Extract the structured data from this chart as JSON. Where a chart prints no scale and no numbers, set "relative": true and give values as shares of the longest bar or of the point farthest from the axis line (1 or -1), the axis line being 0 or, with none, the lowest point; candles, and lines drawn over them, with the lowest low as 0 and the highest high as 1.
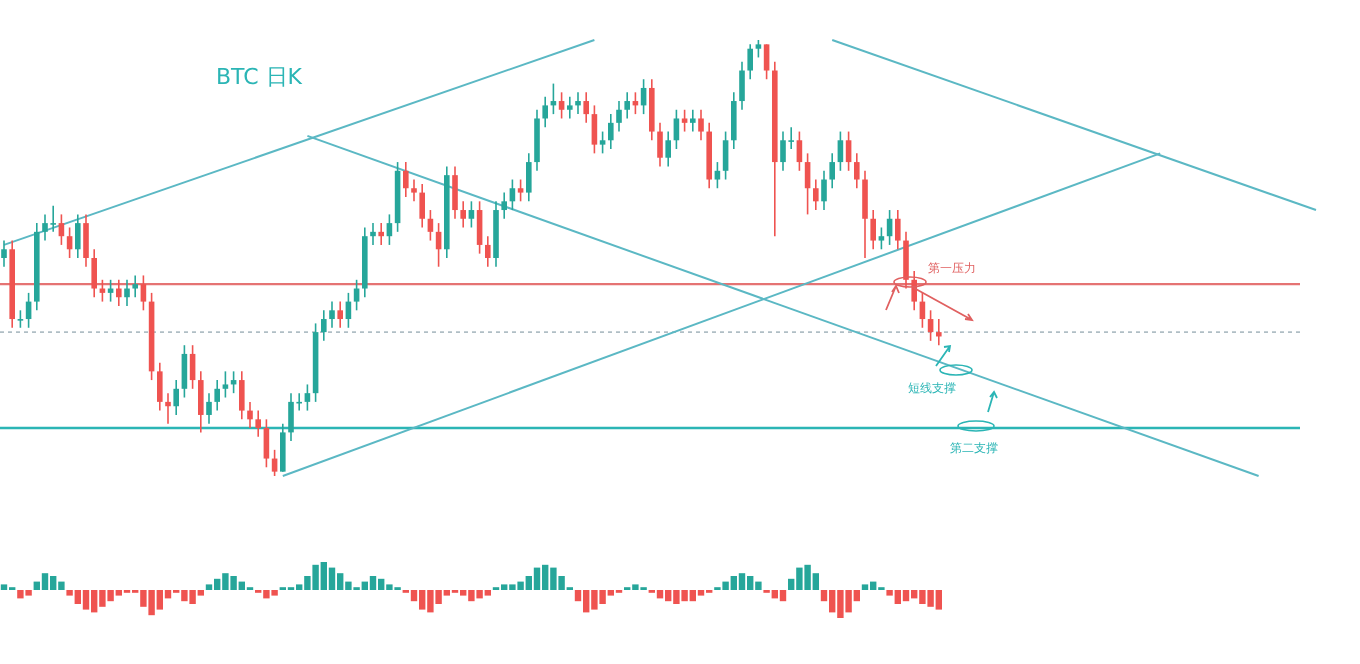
{
  "chart_data": [
    {
      "type": "candlestick",
      "title": "BTC 日K",
      "relative": true,
      "categories": [
        null,
        null,
        null,
        null,
        null,
        null,
        null,
        null,
        null,
        null,
        null,
        null,
        null,
        null,
        null,
        null,
        null,
        null,
        null,
        null,
        null,
        null,
        null,
        null,
        null,
        null,
        null,
        null,
        null,
        null,
        null,
        null,
        null,
        null,
        null,
        null,
        null,
        null,
        null,
        null,
        null,
        null,
        null,
        null,
        null,
        null,
        null,
        null,
        null,
        null,
        null,
        null,
        null,
        null,
        null,
        null,
        null,
        null,
        null,
        null,
        null,
        null,
        null,
        null,
        null,
        null,
        null,
        null,
        null,
        null,
        null,
        null,
        null,
        null,
        null,
        null,
        null,
        null,
        null,
        null,
        null,
        null,
        null,
        null,
        null,
        null,
        null,
        null,
        null,
        null,
        null,
        null,
        null,
        null,
        null,
        null,
        null,
        null,
        null,
        null,
        null,
        null,
        null,
        null,
        null,
        null,
        null,
        null,
        null,
        null,
        null,
        null,
        null,
        null,
        null,
        null,
        null,
        null,
        null,
        null,
        null,
        null,
        null,
        null,
        null,
        null,
        null,
        null,
        null,
        null,
        null,
        null,
        null,
        null,
        null,
        null,
        null,
        null,
        null,
        null,
        null,
        null,
        null,
        null,
        null,
        null,
        null,
        null,
        null,
        null,
        null,
        null,
        null,
        null,
        null,
        null,
        null,
        null,
        null,
        null,
        null
      ],
      "ohlc": [
        [
          0.5,
          0.54,
          0.48,
          0.52
        ],
        [
          0.52,
          0.54,
          0.34,
          0.36
        ],
        [
          0.36,
          0.38,
          0.34,
          0.36
        ],
        [
          0.36,
          0.42,
          0.34,
          0.4
        ],
        [
          0.4,
          0.58,
          0.38,
          0.56
        ],
        [
          0.56,
          0.6,
          0.54,
          0.58
        ],
        [
          0.58,
          0.62,
          0.56,
          0.58
        ],
        [
          0.58,
          0.6,
          0.53,
          0.55
        ],
        [
          0.55,
          0.57,
          0.5,
          0.52
        ],
        [
          0.52,
          0.6,
          0.5,
          0.58
        ],
        [
          0.58,
          0.6,
          0.48,
          0.5
        ],
        [
          0.5,
          0.52,
          0.41,
          0.43
        ],
        [
          0.43,
          0.45,
          0.4,
          0.42
        ],
        [
          0.42,
          0.45,
          0.4,
          0.43
        ],
        [
          0.43,
          0.45,
          0.39,
          0.41
        ],
        [
          0.41,
          0.45,
          0.39,
          0.43
        ],
        [
          0.43,
          0.46,
          0.41,
          0.44
        ],
        [
          0.44,
          0.46,
          0.38,
          0.4
        ],
        [
          0.4,
          0.42,
          0.22,
          0.24
        ],
        [
          0.24,
          0.26,
          0.15,
          0.17
        ],
        [
          0.17,
          0.19,
          0.12,
          0.16
        ],
        [
          0.16,
          0.22,
          0.14,
          0.2
        ],
        [
          0.2,
          0.3,
          0.18,
          0.28
        ],
        [
          0.28,
          0.3,
          0.2,
          0.22
        ],
        [
          0.22,
          0.24,
          0.1,
          0.14
        ],
        [
          0.14,
          0.19,
          0.12,
          0.17
        ],
        [
          0.17,
          0.22,
          0.15,
          0.2
        ],
        [
          0.2,
          0.24,
          0.18,
          0.21
        ],
        [
          0.21,
          0.24,
          0.19,
          0.22
        ],
        [
          0.22,
          0.24,
          0.13,
          0.15
        ],
        [
          0.15,
          0.17,
          0.11,
          0.13
        ],
        [
          0.13,
          0.15,
          0.09,
          0.11
        ],
        [
          0.11,
          0.13,
          0.02,
          0.04
        ],
        [
          0.04,
          0.06,
          0,
          0.01
        ],
        [
          0.01,
          0.12,
          0.01,
          0.1
        ],
        [
          0.1,
          0.19,
          0.08,
          0.17
        ],
        [
          0.17,
          0.19,
          0.15,
          0.17
        ],
        [
          0.17,
          0.21,
          0.15,
          0.19
        ],
        [
          0.19,
          0.35,
          0.17,
          0.33
        ],
        [
          0.33,
          0.38,
          0.31,
          0.36
        ],
        [
          0.36,
          0.4,
          0.34,
          0.38
        ],
        [
          0.38,
          0.4,
          0.34,
          0.36
        ],
        [
          0.36,
          0.42,
          0.34,
          0.4
        ],
        [
          0.4,
          0.45,
          0.38,
          0.43
        ],
        [
          0.43,
          0.57,
          0.41,
          0.55
        ],
        [
          0.55,
          0.58,
          0.53,
          0.56
        ],
        [
          0.56,
          0.58,
          0.53,
          0.55
        ],
        [
          0.55,
          0.6,
          0.53,
          0.58
        ],
        [
          0.58,
          0.72,
          0.56,
          0.7
        ],
        [
          0.7,
          0.72,
          0.64,
          0.66
        ],
        [
          0.66,
          0.68,
          0.63,
          0.65
        ],
        [
          0.65,
          0.67,
          0.57,
          0.59
        ],
        [
          0.59,
          0.61,
          0.54,
          0.56
        ],
        [
          0.56,
          0.58,
          0.48,
          0.52
        ],
        [
          0.52,
          0.71,
          0.5,
          0.69
        ],
        [
          0.69,
          0.71,
          0.59,
          0.61
        ],
        [
          0.61,
          0.63,
          0.57,
          0.59
        ],
        [
          0.59,
          0.63,
          0.57,
          0.61
        ],
        [
          0.61,
          0.63,
          0.51,
          0.53
        ],
        [
          0.53,
          0.55,
          0.48,
          0.5
        ],
        [
          0.5,
          0.63,
          0.48,
          0.61
        ],
        [
          0.61,
          0.65,
          0.59,
          0.63
        ],
        [
          0.63,
          0.68,
          0.61,
          0.66
        ],
        [
          0.66,
          0.68,
          0.63,
          0.65
        ],
        [
          0.65,
          0.74,
          0.63,
          0.72
        ],
        [
          0.72,
          0.84,
          0.7,
          0.82
        ],
        [
          0.82,
          0.87,
          0.8,
          0.85
        ],
        [
          0.85,
          0.9,
          0.83,
          0.86
        ],
        [
          0.86,
          0.88,
          0.82,
          0.84
        ],
        [
          0.84,
          0.87,
          0.82,
          0.85
        ],
        [
          0.85,
          0.88,
          0.83,
          0.86
        ],
        [
          0.86,
          0.88,
          0.81,
          0.83
        ],
        [
          0.83,
          0.85,
          0.74,
          0.76
        ],
        [
          0.76,
          0.79,
          0.74,
          0.77
        ],
        [
          0.77,
          0.83,
          0.75,
          0.81
        ],
        [
          0.81,
          0.86,
          0.79,
          0.84
        ],
        [
          0.84,
          0.88,
          0.82,
          0.86
        ],
        [
          0.86,
          0.88,
          0.83,
          0.85
        ],
        [
          0.85,
          0.91,
          0.83,
          0.89
        ],
        [
          0.89,
          0.91,
          0.77,
          0.79
        ],
        [
          0.79,
          0.81,
          0.71,
          0.73
        ],
        [
          0.73,
          0.79,
          0.71,
          0.77
        ],
        [
          0.77,
          0.84,
          0.75,
          0.82
        ],
        [
          0.82,
          0.84,
          0.79,
          0.81
        ],
        [
          0.81,
          0.84,
          0.79,
          0.82
        ],
        [
          0.82,
          0.84,
          0.77,
          0.79
        ],
        [
          0.79,
          0.81,
          0.66,
          0.68
        ],
        [
          0.68,
          0.72,
          0.66,
          0.7
        ],
        [
          0.7,
          0.79,
          0.68,
          0.77
        ],
        [
          0.77,
          0.88,
          0.75,
          0.86
        ],
        [
          0.86,
          0.95,
          0.84,
          0.93
        ],
        [
          0.93,
          0.99,
          0.91,
          0.98
        ],
        [
          0.98,
          1,
          0.96,
          0.99
        ],
        [
          0.99,
          0.99,
          0.91,
          0.93
        ],
        [
          0.93,
          0.95,
          0.55,
          0.72
        ],
        [
          0.72,
          0.79,
          0.7,
          0.77
        ],
        [
          0.77,
          0.8,
          0.75,
          0.77
        ],
        [
          0.77,
          0.79,
          0.7,
          0.72
        ],
        [
          0.72,
          0.74,
          0.6,
          0.66
        ],
        [
          0.66,
          0.68,
          0.61,
          0.63
        ],
        [
          0.63,
          0.7,
          0.61,
          0.68
        ],
        [
          0.68,
          0.74,
          0.66,
          0.72
        ],
        [
          0.72,
          0.79,
          0.7,
          0.77
        ],
        [
          0.77,
          0.79,
          0.7,
          0.72
        ],
        [
          0.72,
          0.74,
          0.66,
          0.68
        ],
        [
          0.68,
          0.7,
          0.5,
          0.59
        ],
        [
          0.59,
          0.61,
          0.52,
          0.54
        ],
        [
          0.54,
          0.57,
          0.52,
          0.55
        ],
        [
          0.55,
          0.61,
          0.53,
          0.59
        ],
        [
          0.59,
          0.61,
          0.52,
          0.54
        ],
        [
          0.54,
          0.56,
          0.43,
          0.45
        ],
        [
          0.45,
          0.47,
          0.38,
          0.4
        ],
        [
          0.4,
          0.42,
          0.34,
          0.36
        ],
        [
          0.36,
          0.38,
          0.31,
          0.33
        ],
        [
          0.33,
          0.36,
          0.3,
          0.32
        ],
        null,
        null,
        null,
        null,
        null,
        null,
        null,
        null,
        null,
        null,
        null,
        null,
        null,
        null,
        null,
        null,
        null,
        null,
        null,
        null,
        null,
        null,
        null,
        null,
        null,
        null,
        null,
        null,
        null,
        null,
        null,
        null,
        null,
        null,
        null,
        null,
        null,
        null,
        null,
        null,
        null,
        null,
        null,
        null,
        null,
        null
      ],
      "series": [
        {
          "type": "line",
          "color": "#5bb8c4",
          "values": [
            0.53,
            null,
            null,
            null,
            null,
            null,
            null,
            null,
            null,
            null,
            null,
            null,
            null,
            null,
            null,
            null,
            null,
            null,
            null,
            null,
            null,
            null,
            null,
            null,
            null,
            null,
            null,
            null,
            null,
            null,
            null,
            null,
            null,
            null,
            null,
            null,
            null,
            null,
            null,
            null,
            null,
            null,
            null,
            null,
            null,
            null,
            null,
            null,
            null,
            null,
            null,
            null,
            null,
            null,
            null,
            null,
            null,
            null,
            null,
            null,
            null,
            null,
            null,
            null,
            null,
            null,
            null,
            null,
            null,
            null,
            null,
            null,
            1,
            null,
            null,
            null,
            null,
            null,
            null,
            null,
            null,
            null,
            null,
            null,
            null,
            null,
            null,
            null,
            null,
            null,
            null,
            null,
            null,
            null,
            null,
            null,
            null,
            null,
            null,
            null,
            null,
            null,
            null,
            null,
            null,
            null,
            null,
            null,
            null,
            null,
            null,
            null,
            null,
            null,
            null,
            null,
            null,
            null,
            null,
            null,
            null,
            null,
            null,
            null,
            null,
            null,
            null,
            null,
            null,
            null,
            null,
            null,
            null,
            null,
            null,
            null,
            null,
            null,
            null,
            null,
            null,
            null,
            null,
            null,
            null,
            null,
            null,
            null,
            null,
            null,
            null,
            null,
            null,
            null,
            null,
            null,
            null,
            null,
            null,
            null,
            null
          ]
        },
        {
          "type": "line",
          "color": "#5bb8c4",
          "values": [
            null,
            null,
            null,
            null,
            null,
            null,
            null,
            null,
            null,
            null,
            null,
            null,
            null,
            null,
            null,
            null,
            null,
            null,
            null,
            null,
            null,
            null,
            null,
            null,
            null,
            null,
            null,
            null,
            null,
            null,
            null,
            null,
            null,
            null,
            null,
            null,
            null,
            0.78,
            null,
            null,
            null,
            null,
            null,
            null,
            null,
            null,
            null,
            null,
            null,
            null,
            null,
            null,
            null,
            null,
            null,
            null,
            null,
            null,
            null,
            null,
            null,
            null,
            null,
            null,
            null,
            null,
            null,
            null,
            null,
            null,
            null,
            null,
            null,
            null,
            null,
            null,
            null,
            null,
            null,
            null,
            null,
            null,
            null,
            null,
            null,
            null,
            null,
            null,
            null,
            null,
            null,
            null,
            null,
            null,
            null,
            null,
            null,
            null,
            null,
            null,
            null,
            null,
            null,
            null,
            null,
            null,
            null,
            null,
            null,
            null,
            null,
            null,
            null,
            null,
            null,
            null,
            null,
            null,
            null,
            null,
            null,
            null,
            null,
            null,
            null,
            null,
            null,
            null,
            null,
            null,
            null,
            null,
            null,
            null,
            null,
            null,
            null,
            null,
            null,
            null,
            null,
            null,
            null,
            null,
            null,
            null,
            null,
            null,
            null,
            null,
            null,
            null,
            null,
            0,
            null,
            null,
            null,
            null,
            null,
            null,
            null
          ]
        },
        {
          "type": "line",
          "color": "#5bb8c4",
          "values": [
            null,
            null,
            null,
            null,
            null,
            null,
            null,
            null,
            null,
            null,
            null,
            null,
            null,
            null,
            null,
            null,
            null,
            null,
            null,
            null,
            null,
            null,
            null,
            null,
            null,
            null,
            null,
            null,
            null,
            null,
            null,
            null,
            null,
            null,
            0,
            null,
            null,
            null,
            null,
            null,
            null,
            null,
            null,
            null,
            null,
            null,
            null,
            null,
            null,
            null,
            null,
            null,
            null,
            null,
            null,
            null,
            null,
            null,
            null,
            null,
            null,
            null,
            null,
            null,
            null,
            null,
            null,
            null,
            null,
            null,
            null,
            null,
            null,
            null,
            null,
            null,
            null,
            null,
            null,
            null,
            null,
            null,
            null,
            null,
            null,
            null,
            null,
            null,
            null,
            null,
            null,
            null,
            null,
            null,
            null,
            null,
            null,
            null,
            null,
            null,
            null,
            null,
            null,
            null,
            null,
            null,
            null,
            null,
            null,
            null,
            null,
            null,
            null,
            null,
            null,
            null,
            null,
            null,
            null,
            null,
            null,
            null,
            null,
            null,
            null,
            null,
            null,
            null,
            null,
            null,
            null,
            null,
            null,
            null,
            null,
            null,
            null,
            null,
            null,
            null,
            null,
            0.74,
            null,
            null,
            null,
            null,
            null,
            null,
            null,
            null,
            null,
            null,
            null,
            null,
            null,
            null,
            null,
            null,
            null,
            null,
            null
          ]
        },
        {
          "type": "line",
          "color": "#5bb8c4",
          "values": [
            null,
            null,
            null,
            null,
            null,
            null,
            null,
            null,
            null,
            null,
            null,
            null,
            null,
            null,
            null,
            null,
            null,
            null,
            null,
            null,
            null,
            null,
            null,
            null,
            null,
            null,
            null,
            null,
            null,
            null,
            null,
            null,
            null,
            null,
            null,
            null,
            null,
            null,
            null,
            null,
            null,
            null,
            null,
            null,
            null,
            null,
            null,
            null,
            null,
            null,
            null,
            null,
            null,
            null,
            null,
            null,
            null,
            null,
            null,
            null,
            null,
            null,
            null,
            null,
            null,
            null,
            null,
            null,
            null,
            null,
            null,
            null,
            null,
            null,
            null,
            null,
            null,
            null,
            null,
            null,
            null,
            null,
            null,
            null,
            null,
            null,
            null,
            null,
            null,
            null,
            null,
            null,
            null,
            null,
            null,
            null,
            null,
            null,
            null,
            null,
            null,
            1,
            null,
            null,
            null,
            null,
            null,
            null,
            null,
            null,
            null,
            null,
            null,
            null,
            null,
            null,
            null,
            null,
            null,
            null,
            null,
            null,
            null,
            null,
            null,
            null,
            null,
            null,
            null,
            null,
            null,
            null,
            null,
            null,
            null,
            null,
            null,
            null,
            null,
            null,
            null,
            null,
            null,
            null,
            null,
            null,
            null,
            null,
            null,
            null,
            null,
            null,
            null,
            null,
            null,
            null,
            null,
            null,
            null,
            null,
            0.61
          ]
        }
      ],
      "ref_lines": [
        {
          "axis": "y",
          "value": 0.44,
          "color": "#e57373",
          "line_style": "solid"
        },
        {
          "axis": "y",
          "value": 0.33,
          "color": "#b0bec5",
          "line_style": "dotted"
        },
        {
          "axis": "y",
          "value": 0.11,
          "color": "#2bb5b5",
          "line_style": "solid"
        }
      ],
      "annotations": [
        {
          "text": "第一压力",
          "y": 0.44
        },
        "短线支撑",
        {
          "text": "第二支撑",
          "y": 0.11
        }
      ]
    },
    {
      "type": "bar",
      "stacked": true,
      "relative": true,
      "categories": [
        null,
        null,
        null,
        null,
        null,
        null,
        null,
        null,
        null,
        null,
        null,
        null,
        null,
        null,
        null,
        null,
        null,
        null,
        null,
        null,
        null,
        null,
        null,
        null,
        null,
        null,
        null,
        null,
        null,
        null,
        null,
        null,
        null,
        null,
        null,
        null,
        null,
        null,
        null,
        null,
        null,
        null,
        null,
        null,
        null,
        null,
        null,
        null,
        null,
        null,
        null,
        null,
        null,
        null,
        null,
        null,
        null,
        null,
        null,
        null,
        null,
        null,
        null,
        null,
        null,
        null,
        null,
        null,
        null,
        null,
        null,
        null,
        null,
        null,
        null,
        null,
        null,
        null,
        null,
        null,
        null,
        null,
        null,
        null,
        null,
        null,
        null,
        null,
        null,
        null,
        null,
        null,
        null,
        null,
        null,
        null,
        null,
        null,
        null,
        null,
        null,
        null,
        null,
        null,
        null,
        null,
        null,
        null,
        null,
        null,
        null,
        null,
        null,
        null,
        null,
        null,
        null,
        null,
        null,
        null,
        null,
        null,
        null,
        null,
        null,
        null,
        null,
        null,
        null,
        null,
        null,
        null,
        null,
        null,
        null,
        null,
        null,
        null,
        null,
        null,
        null,
        null,
        null,
        null,
        null,
        null,
        null,
        null,
        null,
        null,
        null,
        null,
        null,
        null,
        null,
        null,
        null,
        null,
        null,
        null,
        null
      ],
      "series": [
        {
          "color": "#26a69a",
          "values": [
            0.2,
            0.1,
            null,
            null,
            0.3,
            0.6,
            0.5,
            0.3,
            null,
            null,
            null,
            null,
            null,
            null,
            null,
            null,
            null,
            null,
            null,
            null,
            null,
            null,
            null,
            null,
            null,
            0.2,
            0.4,
            0.6,
            0.5,
            0.3,
            0.1,
            null,
            null,
            null,
            0.1,
            0.1,
            0.2,
            0.5,
            0.9,
            1.0,
            0.8,
            0.6,
            0.3,
            0.1,
            0.3,
            0.5,
            0.4,
            0.2,
            0.1,
            null,
            null,
            null,
            null,
            null,
            null,
            null,
            null,
            null,
            null,
            null,
            0.1,
            0.2,
            0.2,
            0.3,
            0.5,
            0.8,
            0.9,
            0.8,
            0.5,
            0.1,
            null,
            null,
            null,
            null,
            null,
            null,
            0.1,
            0.2,
            0.1,
            null,
            null,
            null,
            null,
            null,
            null,
            null,
            null,
            0.1,
            0.3,
            0.5,
            0.6,
            0.5,
            0.3,
            null,
            null,
            null,
            0.4,
            0.8,
            0.9,
            0.6,
            null,
            null,
            null,
            null,
            null,
            0.2,
            0.3,
            0.1,
            null,
            null,
            null,
            null,
            null,
            null,
            null,
            null,
            null,
            null,
            null,
            null,
            null,
            null,
            null,
            null,
            null,
            null,
            null,
            null,
            null,
            null,
            null,
            null,
            null,
            null,
            null,
            null,
            null,
            null,
            null,
            null,
            null,
            null,
            null,
            null,
            null,
            null,
            null,
            null,
            null,
            null,
            null,
            null,
            null,
            null,
            null,
            null,
            null,
            null,
            null,
            null,
            null
          ]
        },
        {
          "color": "#ef5350",
          "values": [
            null,
            null,
            -0.3,
            -0.2,
            null,
            null,
            null,
            null,
            -0.2,
            -0.5,
            -0.7,
            -0.8,
            -0.6,
            -0.4,
            -0.2,
            -0.1,
            -0.1,
            -0.6,
            -0.9,
            -0.7,
            -0.3,
            -0.1,
            -0.4,
            -0.5,
            -0.2,
            null,
            null,
            null,
            null,
            null,
            null,
            -0.1,
            -0.3,
            -0.2,
            null,
            null,
            null,
            null,
            null,
            null,
            null,
            null,
            null,
            null,
            null,
            null,
            null,
            null,
            null,
            -0.1,
            -0.4,
            -0.7,
            -0.8,
            -0.5,
            -0.2,
            -0.1,
            -0.2,
            -0.4,
            -0.3,
            -0.2,
            null,
            null,
            null,
            null,
            null,
            null,
            null,
            null,
            null,
            null,
            -0.4,
            -0.8,
            -0.7,
            -0.5,
            -0.2,
            -0.1,
            null,
            null,
            null,
            -0.1,
            -0.3,
            -0.4,
            -0.5,
            -0.4,
            -0.4,
            -0.2,
            -0.1,
            null,
            null,
            null,
            null,
            null,
            null,
            -0.1,
            -0.3,
            -0.4,
            null,
            null,
            null,
            null,
            -0.4,
            -0.8,
            -1.0,
            -0.8,
            -0.4,
            null,
            null,
            null,
            -0.2,
            -0.5,
            -0.4,
            -0.3,
            -0.5,
            -0.6,
            -0.7,
            null,
            null,
            null,
            null,
            null,
            null,
            null,
            null,
            null,
            null,
            null,
            null,
            null,
            null,
            null,
            null,
            null,
            null,
            null,
            null,
            null,
            null,
            null,
            null,
            null,
            null,
            null,
            null,
            null,
            null,
            null,
            null,
            null,
            null,
            null,
            null,
            null,
            null,
            null,
            null,
            null,
            null,
            null,
            null,
            null,
            null
          ]
        }
      ]
    }
  ]
}
